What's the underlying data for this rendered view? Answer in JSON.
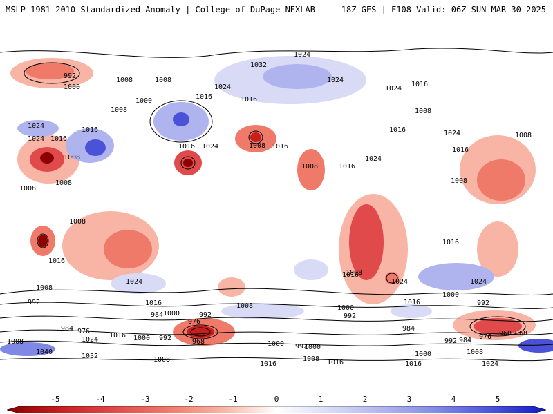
{
  "header": {
    "title_left": "MSLP 1981-2010 Standardized Anomaly | College of DuPage NEXLAB",
    "title_right": "18Z GFS | F108 Valid: 06Z SUN MAR 30 2025"
  },
  "colorbar": {
    "ticks": [
      "-5",
      "-4",
      "-3",
      "-2",
      "-1",
      "0",
      "1",
      "2",
      "3",
      "4",
      "5"
    ],
    "colors": [
      "#8b0000",
      "#c81e1e",
      "#e04a4a",
      "#f07a6a",
      "#f8b4a4",
      "#ffffff",
      "#d8daf6",
      "#b0b4ee",
      "#8088e6",
      "#4a52d8",
      "#1418c8"
    ]
  },
  "isobar_labels": [
    "992",
    "1000",
    "1008",
    "1032",
    "1024",
    "1008",
    "1024",
    "1024",
    "1000",
    "1016",
    "1008",
    "1016",
    "1024",
    "1016",
    "1024",
    "1016",
    "1008",
    "1024",
    "1016",
    "1008",
    "1016",
    "1008",
    "1008",
    "1024",
    "1016",
    "1024",
    "1008",
    "1008",
    "1008",
    "1016",
    "1024",
    "1016",
    "1016",
    "1008",
    "1024",
    "1016",
    "1008",
    "1016",
    "1024",
    "992",
    "1008",
    "1016",
    "1000",
    "1016",
    "1008",
    "984",
    "992",
    "1000",
    "976",
    "968",
    "992",
    "1000",
    "984",
    "976",
    "1024",
    "1016",
    "1000",
    "992",
    "1008",
    "1040",
    "1032",
    "1008",
    "992",
    "992",
    "1000",
    "1008",
    "1016",
    "1024",
    "992",
    "984",
    "976",
    "960",
    "968",
    "984",
    "1000",
    "1008",
    "1016",
    "1024",
    "1016",
    "1000",
    "1008",
    "1016"
  ]
}
